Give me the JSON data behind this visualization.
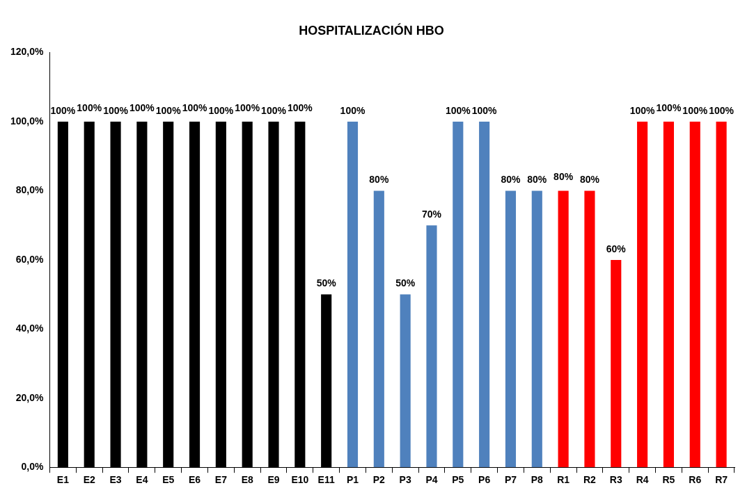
{
  "chart_data": {
    "type": "bar",
    "title": "HOSPITALIZACIÓN HBO",
    "categories": [
      "E1",
      "E2",
      "E3",
      "E4",
      "E5",
      "E6",
      "E7",
      "E8",
      "E9",
      "E10",
      "E11",
      "P1",
      "P2",
      "P3",
      "P4",
      "P5",
      "P6",
      "P7",
      "P8",
      "R1",
      "R2",
      "R3",
      "R4",
      "R5",
      "R6",
      "R7"
    ],
    "values": [
      100,
      100,
      100,
      100,
      100,
      100,
      100,
      100,
      100,
      100,
      50,
      100,
      80,
      50,
      70,
      100,
      100,
      80,
      80,
      80,
      80,
      60,
      100,
      100,
      100,
      100
    ],
    "colors": [
      "#000000",
      "#000000",
      "#000000",
      "#000000",
      "#000000",
      "#000000",
      "#000000",
      "#000000",
      "#000000",
      "#000000",
      "#000000",
      "#4f81bd",
      "#4f81bd",
      "#4f81bd",
      "#4f81bd",
      "#4f81bd",
      "#4f81bd",
      "#4f81bd",
      "#4f81bd",
      "#ff0000",
      "#ff0000",
      "#ff0000",
      "#ff0000",
      "#ff0000",
      "#ff0000",
      "#ff0000"
    ],
    "value_labels": [
      "100%",
      "100%",
      "100%",
      "100%",
      "100%",
      "100%",
      "100%",
      "100%",
      "100%",
      "100%",
      "50%",
      "100%",
      "80%",
      "50%",
      "70%",
      "100%",
      "100%",
      "80%",
      "80%",
      "80%",
      "80%",
      "60%",
      "100%",
      "100%",
      "100%",
      "100%"
    ],
    "ylim": [
      0,
      120
    ],
    "yticks": [
      {
        "value": 0,
        "label": "0,0%"
      },
      {
        "value": 20,
        "label": "20,0%"
      },
      {
        "value": 40,
        "label": "40,0%"
      },
      {
        "value": 60,
        "label": "60,0%"
      },
      {
        "value": 80,
        "label": "80,0%"
      },
      {
        "value": 100,
        "label": "100,0%"
      },
      {
        "value": 120,
        "label": "120,0%"
      }
    ],
    "grid": false,
    "legend": false
  }
}
